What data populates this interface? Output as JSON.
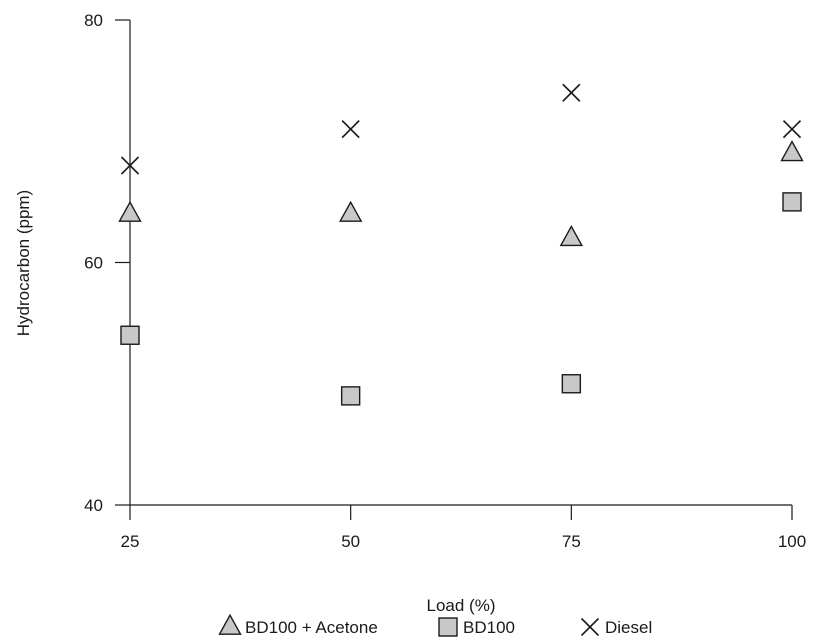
{
  "chart_data": {
    "type": "scatter",
    "xlabel": "Load (%)",
    "ylabel": "Hydrocarbon (ppm)",
    "x_ticks": [
      25,
      50,
      75,
      100
    ],
    "y_ticks": [
      40,
      60,
      80
    ],
    "xlim": [
      25,
      100
    ],
    "ylim": [
      40,
      80
    ],
    "grid": false,
    "legend_position": "bottom",
    "series": [
      {
        "name": "BD100 + Acetone",
        "marker": "triangle",
        "color": "#c8c8c8",
        "x": [
          25,
          50,
          75,
          100
        ],
        "y": [
          64,
          64,
          62,
          69
        ]
      },
      {
        "name": "BD100",
        "marker": "square",
        "color": "#c8c8c8",
        "x": [
          25,
          50,
          75,
          100
        ],
        "y": [
          54,
          49,
          50,
          65
        ]
      },
      {
        "name": "Diesel",
        "marker": "cross",
        "color": "#1a1a1a",
        "x": [
          25,
          50,
          75,
          100
        ],
        "y": [
          68,
          71,
          74,
          71
        ]
      }
    ]
  }
}
